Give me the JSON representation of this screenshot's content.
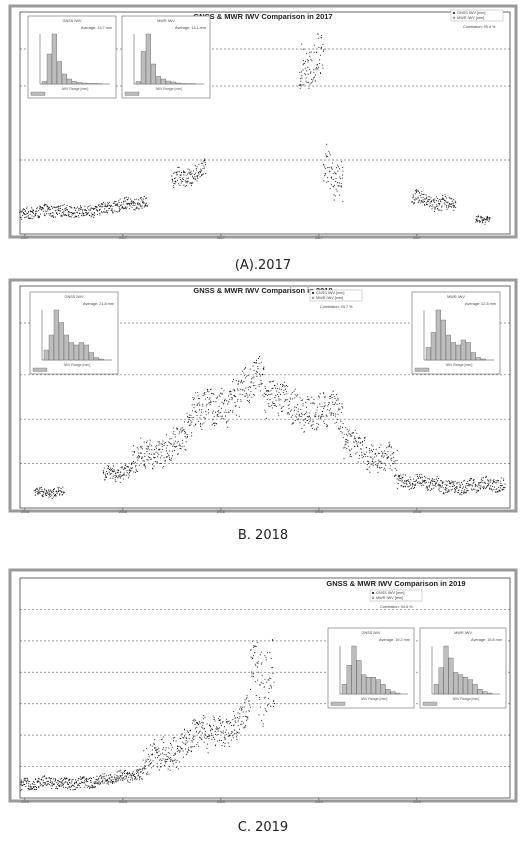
{
  "chart_data": [
    {
      "type": "scatter",
      "caption": "(A).2017",
      "title": "GNSS & MWR IWV Comparison in 2017",
      "legend": [
        "GNSS IWV [mm]",
        "MWR IWV [mm]"
      ],
      "correlation_text": "Correlation: 95.4 %",
      "ylim": [
        0,
        60
      ],
      "y_gridlines": [
        20,
        40
      ],
      "y_baseline": 50,
      "x_ticks": [
        "2017",
        "2017",
        "2017",
        "2017",
        "2017"
      ],
      "segments": [
        {
          "start": 0.0,
          "end": 0.26,
          "base": 3.5,
          "amp": 3.5,
          "trend": 3.0
        },
        {
          "start": 0.31,
          "end": 0.38,
          "base": 12.0,
          "amp": 5.0,
          "trend": 3.0
        },
        {
          "start": 0.57,
          "end": 0.62,
          "base": 38.0,
          "amp": 12.0,
          "trend": 5.0
        },
        {
          "start": 0.62,
          "end": 0.66,
          "base": 14.0,
          "amp": 10.0,
          "trend": -5.0
        },
        {
          "start": 0.8,
          "end": 0.89,
          "base": 8.0,
          "amp": 4.0,
          "trend": -2.0
        },
        {
          "start": 0.93,
          "end": 0.96,
          "base": 3.0,
          "amp": 2.0,
          "trend": 0.0
        }
      ],
      "insets": [
        {
          "title": "GNSS IWV",
          "average": "Average: 13.7 mm",
          "xlabel": "IWV Range [mm]",
          "values": [
            0.05,
            0.6,
            1.0,
            0.45,
            0.2,
            0.1,
            0.05,
            0.03,
            0.02,
            0.01,
            0.01,
            0.005
          ]
        },
        {
          "title": "MWR IWV",
          "average": "Average: 13.1 mm",
          "xlabel": "IWV Range [mm]",
          "values": [
            0.05,
            0.65,
            1.0,
            0.4,
            0.15,
            0.1,
            0.06,
            0.04,
            0.02,
            0.01,
            0.005,
            0.005
          ]
        }
      ]
    },
    {
      "type": "scatter",
      "caption": "B. 2018",
      "title": "GNSS & MWR IWV Comparison in 2018",
      "legend": [
        "GNSS IWV [mm]",
        "MWR IWV [mm]"
      ],
      "correlation_text": "Correlation: 93.7 %",
      "ylim": [
        0,
        60
      ],
      "y_gridlines": [
        12,
        24,
        36
      ],
      "y_baseline": 50,
      "x_ticks": [
        "2018",
        "2018",
        "2018",
        "2018",
        "2018"
      ],
      "segments": [
        {
          "start": 0.03,
          "end": 0.09,
          "base": 3.0,
          "amp": 2.5,
          "trend": 0.0
        },
        {
          "start": 0.17,
          "end": 0.23,
          "base": 7.0,
          "amp": 4.0,
          "trend": 1.0
        },
        {
          "start": 0.23,
          "end": 0.34,
          "base": 9.0,
          "amp": 8.0,
          "trend": 6.0
        },
        {
          "start": 0.34,
          "end": 0.5,
          "base": 18.0,
          "amp": 11.0,
          "trend": 12.0
        },
        {
          "start": 0.5,
          "end": 0.66,
          "base": 25.0,
          "amp": 10.0,
          "trend": -5.0
        },
        {
          "start": 0.66,
          "end": 0.77,
          "base": 14.0,
          "amp": 8.0,
          "trend": -6.0
        },
        {
          "start": 0.77,
          "end": 0.99,
          "base": 5.0,
          "amp": 4.0,
          "trend": -1.0
        }
      ],
      "insets": [
        {
          "title": "GNSS IWV",
          "average": "Average: 21.8 mm",
          "xlabel": "IWV Range [mm]",
          "values": [
            0.2,
            0.5,
            1.0,
            0.75,
            0.5,
            0.35,
            0.3,
            0.35,
            0.3,
            0.15,
            0.05,
            0.02
          ]
        },
        {
          "title": "MWR IWV",
          "average": "Average: 22.8 mm",
          "xlabel": "IWV Range [mm]",
          "values": [
            0.25,
            0.55,
            1.0,
            0.8,
            0.5,
            0.35,
            0.3,
            0.4,
            0.35,
            0.15,
            0.05,
            0.02
          ]
        }
      ]
    },
    {
      "type": "scatter",
      "caption": "C. 2019",
      "title": "GNSS & MWR IWV Comparison in 2019",
      "legend": [
        "GNSS IWV [mm]",
        "MWR IWV [mm]"
      ],
      "correlation_text": "Correlation: 94.6 %",
      "ylim": [
        0,
        70
      ],
      "y_gridlines": [
        10,
        20,
        30,
        40,
        50,
        60
      ],
      "y_baseline": null,
      "x_ticks": [
        "2019",
        "2019",
        "2019",
        "2019",
        "2019"
      ],
      "segments": [
        {
          "start": 0.0,
          "end": 0.25,
          "base": 2.0,
          "amp": 4.0,
          "trend": 3.0
        },
        {
          "start": 0.25,
          "end": 0.38,
          "base": 6.0,
          "amp": 10.0,
          "trend": 10.0
        },
        {
          "start": 0.38,
          "end": 0.47,
          "base": 14.0,
          "amp": 10.0,
          "trend": 8.0
        },
        {
          "start": 0.47,
          "end": 0.52,
          "base": 30.0,
          "amp": 22.0,
          "trend": -4.0
        }
      ],
      "insets": [
        {
          "title": "GNSS IWV",
          "average": "Average: 19.2 mm",
          "xlabel": "IWV Range [mm]",
          "values": [
            0.2,
            0.6,
            1.0,
            0.7,
            0.4,
            0.35,
            0.35,
            0.3,
            0.2,
            0.1,
            0.05,
            0.02
          ]
        },
        {
          "title": "MWR IWV",
          "average": "Average: 19.8 mm",
          "xlabel": "IWV Range [mm]",
          "values": [
            0.2,
            0.55,
            1.0,
            0.75,
            0.45,
            0.4,
            0.35,
            0.3,
            0.2,
            0.1,
            0.05,
            0.02
          ]
        }
      ]
    }
  ]
}
